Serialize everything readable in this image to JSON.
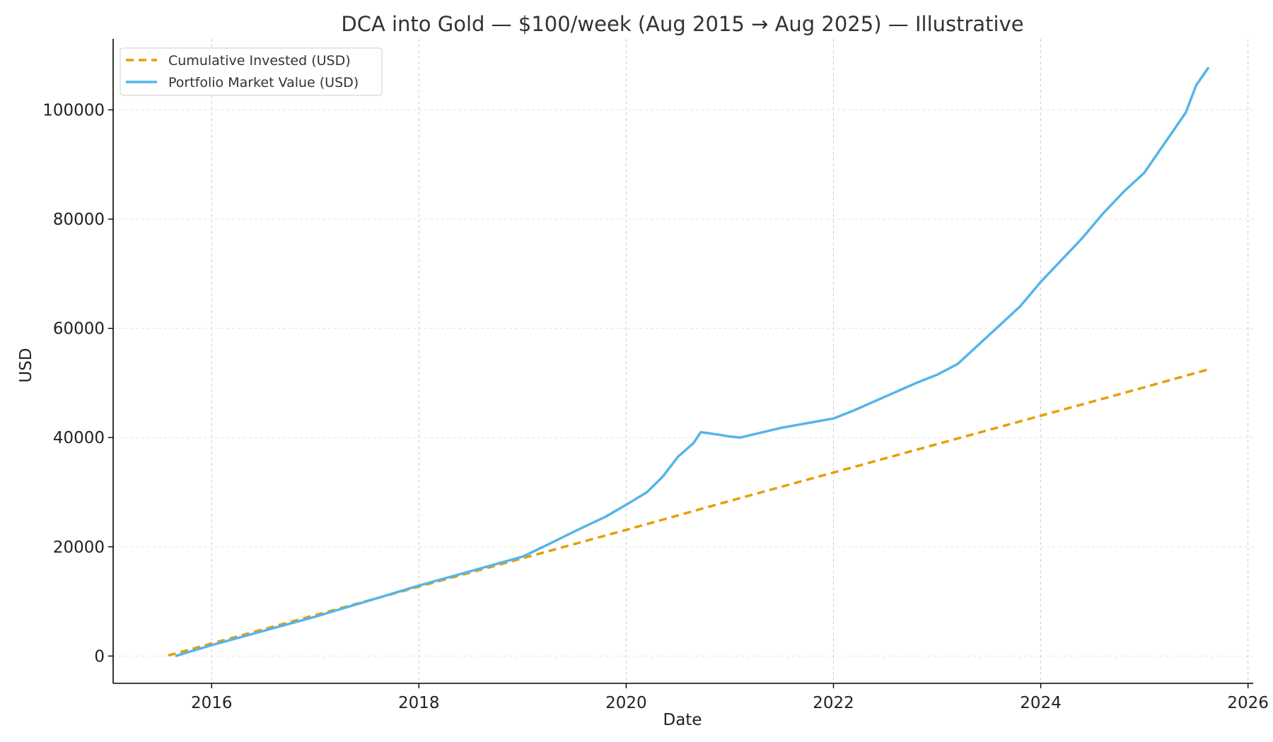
{
  "chart_data": {
    "type": "line",
    "title": "DCA into Gold — $100/week (Aug 2015 → Aug 2025) — Illustrative",
    "xlabel": "Date",
    "ylabel": "USD",
    "xlim": [
      2015.05,
      2026.05
    ],
    "ylim": [
      -5000,
      113000
    ],
    "x_ticks": [
      2016,
      2018,
      2020,
      2022,
      2024,
      2026
    ],
    "y_ticks": [
      0,
      20000,
      40000,
      60000,
      80000,
      100000
    ],
    "grid": true,
    "legend_position": "upper-left",
    "series": [
      {
        "name": "Cumulative Invested (USD)",
        "color": "#E69F00",
        "style": "dashed",
        "x": [
          2015.58,
          2016.0,
          2017.0,
          2018.0,
          2019.0,
          2020.0,
          2021.0,
          2022.0,
          2023.0,
          2024.0,
          2025.0,
          2025.62
        ],
        "y": [
          100,
          2300,
          7500,
          12700,
          17900,
          23100,
          28400,
          33600,
          38800,
          44000,
          49200,
          52500
        ]
      },
      {
        "name": "Portfolio Market Value (USD)",
        "color": "#56B4E9",
        "style": "solid",
        "x": [
          2015.65,
          2016.0,
          2017.0,
          2018.0,
          2019.0,
          2019.2,
          2019.5,
          2019.8,
          2020.0,
          2020.2,
          2020.35,
          2020.5,
          2020.65,
          2020.72,
          2020.9,
          2021.0,
          2021.1,
          2021.5,
          2022.0,
          2022.2,
          2022.5,
          2022.8,
          2023.0,
          2023.2,
          2023.4,
          2023.6,
          2023.8,
          2024.0,
          2024.2,
          2024.4,
          2024.6,
          2024.8,
          2025.0,
          2025.2,
          2025.4,
          2025.5,
          2025.62
        ],
        "y": [
          0,
          2000,
          7200,
          12900,
          18200,
          20000,
          22800,
          25500,
          27700,
          30000,
          32800,
          36500,
          39000,
          41000,
          40500,
          40200,
          40000,
          41800,
          43500,
          45000,
          47500,
          50000,
          51500,
          53500,
          57000,
          60500,
          64000,
          68500,
          72500,
          76500,
          81000,
          85000,
          88500,
          94000,
          99500,
          104500,
          107800
        ]
      }
    ]
  }
}
